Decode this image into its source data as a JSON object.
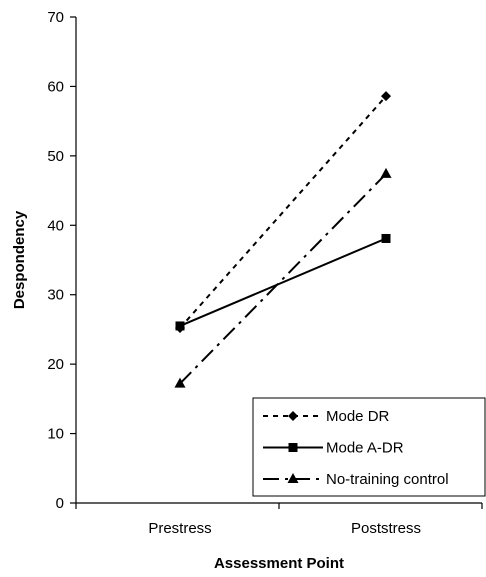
{
  "chart_data": {
    "type": "line",
    "title": "",
    "xlabel": "Assessment Point",
    "ylabel": "Despondency",
    "categories": [
      "Prestress",
      "Poststress"
    ],
    "ylim": [
      0,
      70
    ],
    "yticks": [
      0,
      10,
      20,
      30,
      40,
      50,
      60,
      70
    ],
    "grid": false,
    "legend_position": "bottom-right",
    "series": [
      {
        "name": "Mode DR",
        "values": [
          25.2,
          58.6
        ],
        "marker": "diamond",
        "dash": "short-dash",
        "color": "#000000"
      },
      {
        "name": "Mode A-DR",
        "values": [
          25.5,
          38.1
        ],
        "marker": "square",
        "dash": "solid",
        "color": "#000000"
      },
      {
        "name": "No-training control",
        "values": [
          17.2,
          47.4
        ],
        "marker": "triangle",
        "dash": "long-dash-dot",
        "color": "#000000"
      }
    ]
  }
}
